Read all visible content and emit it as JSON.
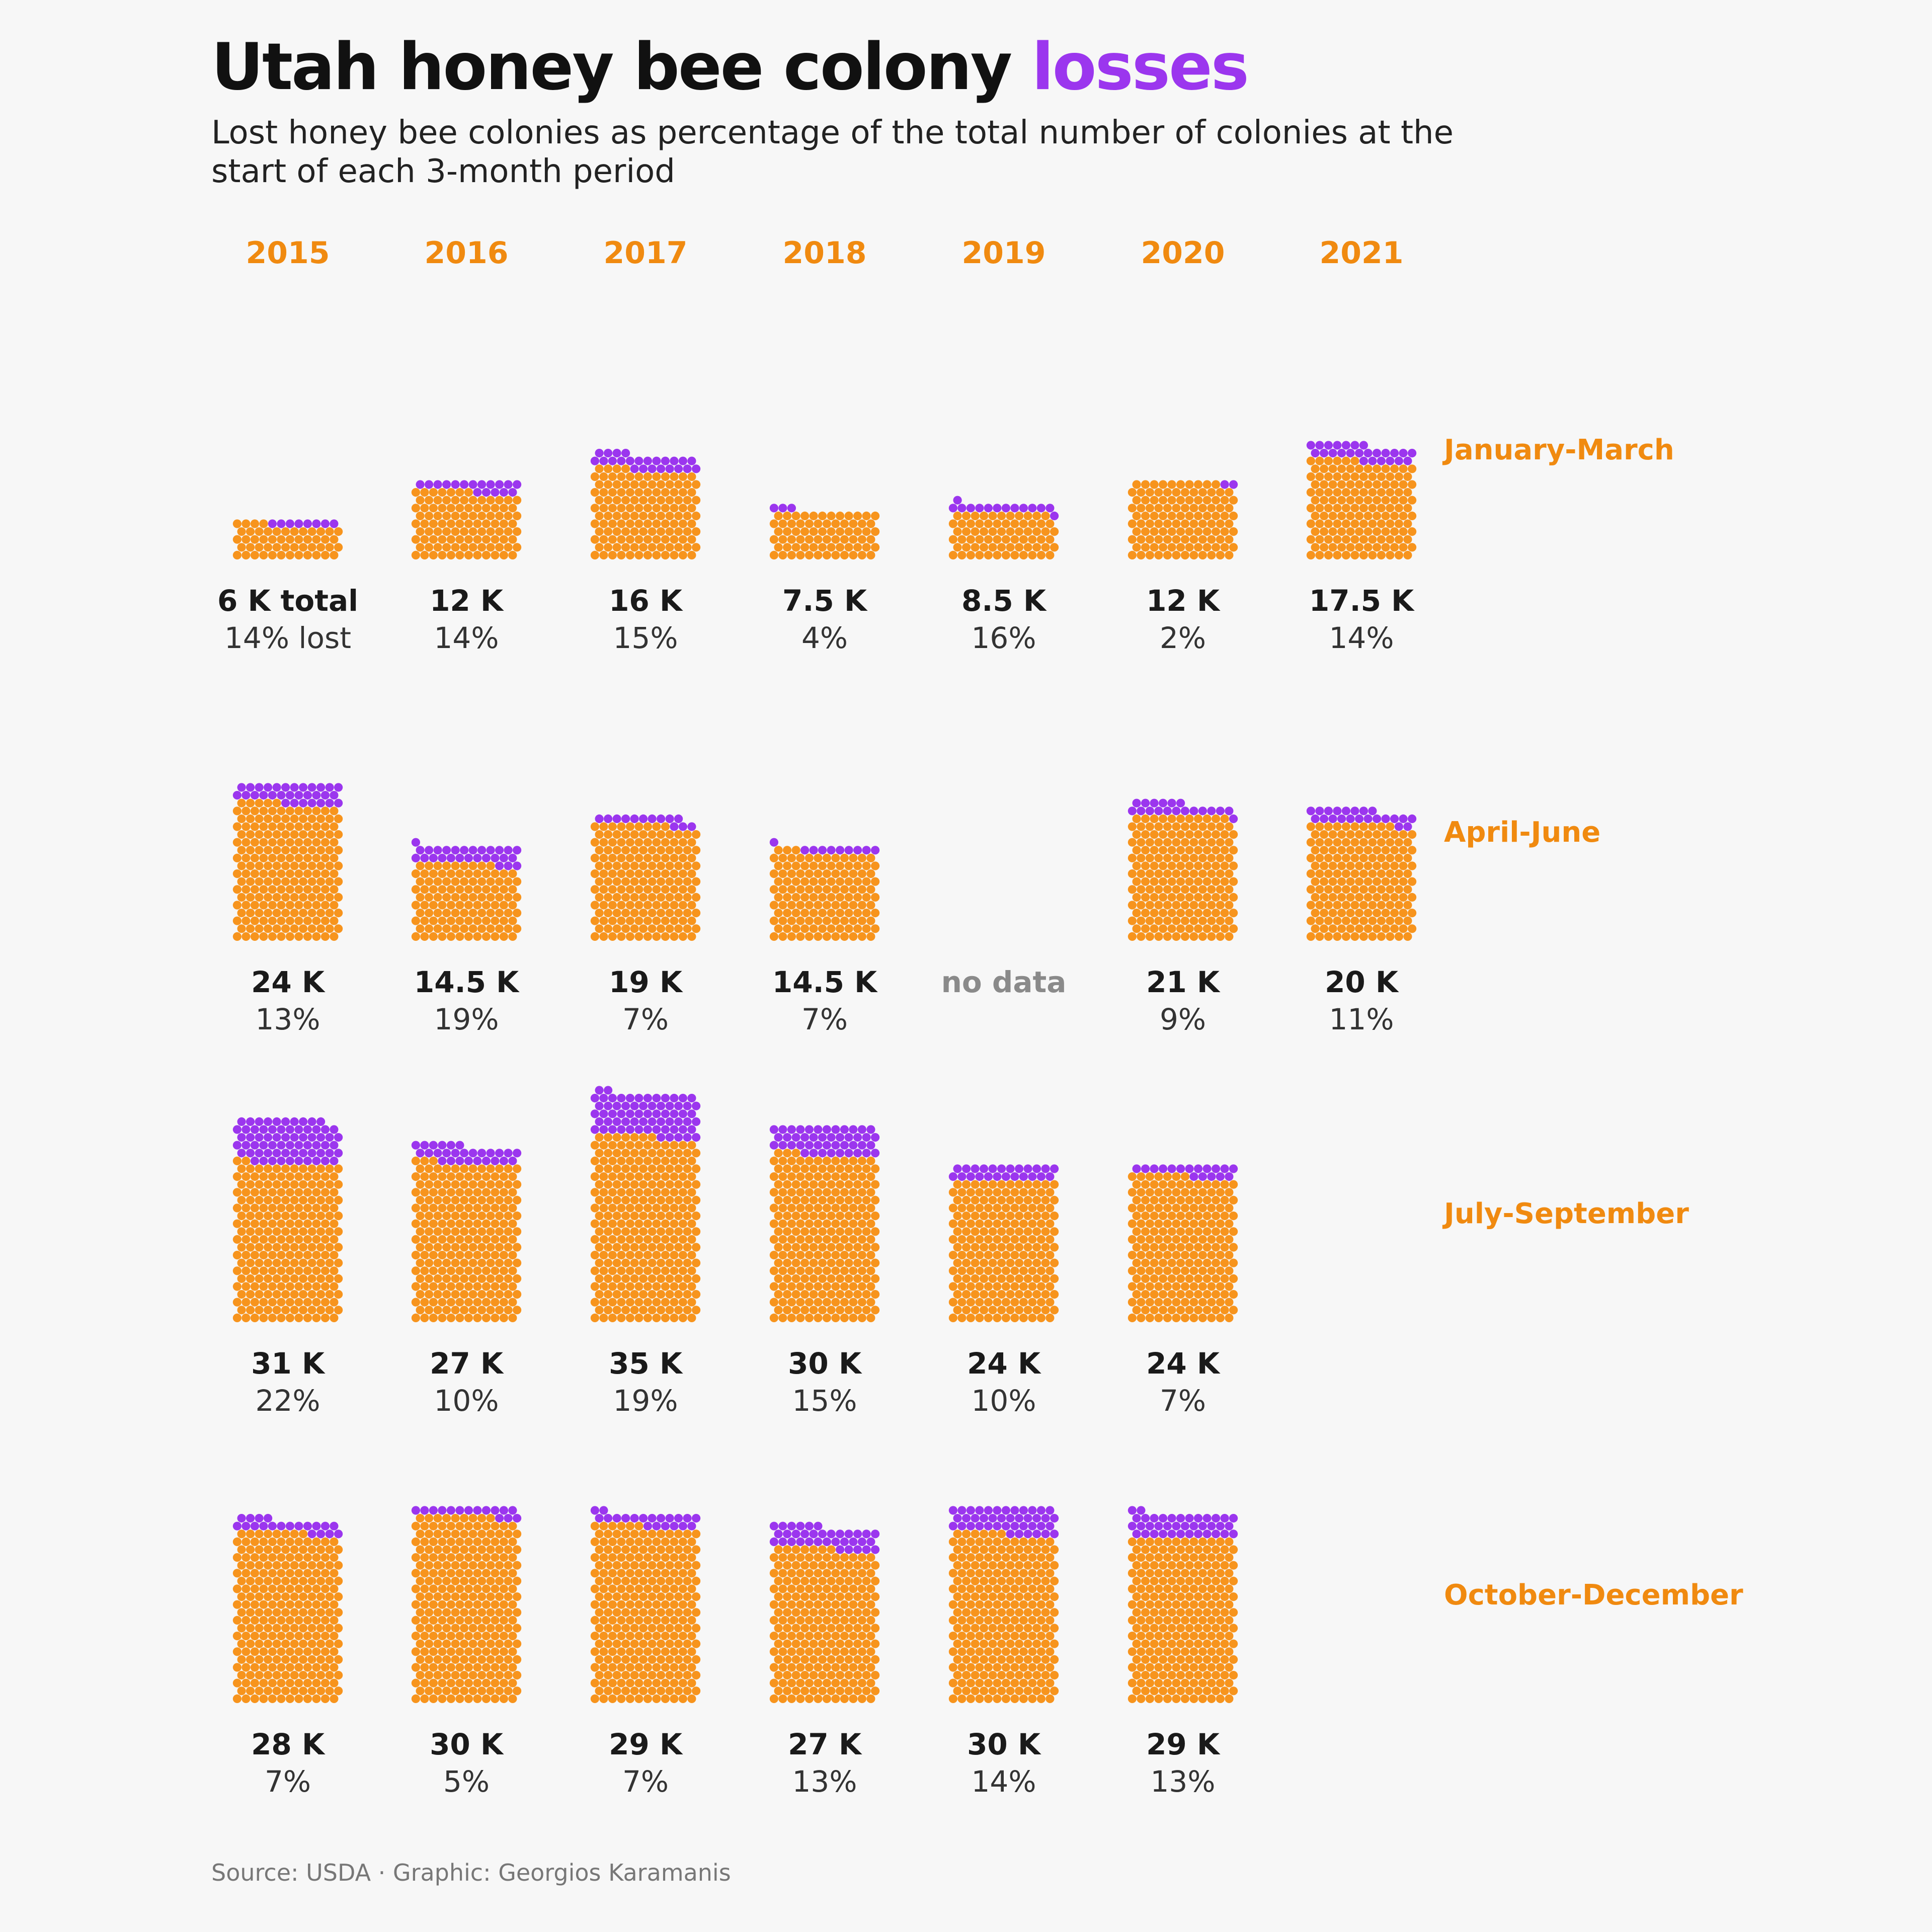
{
  "title": {
    "main": "Utah honey bee colony ",
    "accent": "losses"
  },
  "subtitle": "Lost honey bee colonies as percentage of the total number of colonies at the start of each 3-month period",
  "source": "Source: USDA · Graphic: Georgios Karamanis",
  "colors": {
    "remaining": "#f7941d",
    "lost": "#9b36ee",
    "label_accent": "#f08a10"
  },
  "chart_data": {
    "type": "waffle",
    "years": [
      "2015",
      "2016",
      "2017",
      "2018",
      "2019",
      "2020",
      "2021"
    ],
    "periods": [
      "January-March",
      "April-June",
      "July-September",
      "October-December"
    ],
    "cells": [
      [
        {
          "total": 6,
          "total_label": "6 K total",
          "lost_pct": 14,
          "pct_label": "14% lost"
        },
        {
          "total": 12,
          "total_label": "12 K",
          "lost_pct": 14,
          "pct_label": "14%"
        },
        {
          "total": 16,
          "total_label": "16 K",
          "lost_pct": 15,
          "pct_label": "15%"
        },
        {
          "total": 7.5,
          "total_label": "7.5 K",
          "lost_pct": 4,
          "pct_label": "4%"
        },
        {
          "total": 8.5,
          "total_label": "8.5 K",
          "lost_pct": 16,
          "pct_label": "16%"
        },
        {
          "total": 12,
          "total_label": "12 K",
          "lost_pct": 2,
          "pct_label": "2%"
        },
        {
          "total": 17.5,
          "total_label": "17.5 K",
          "lost_pct": 14,
          "pct_label": "14%"
        }
      ],
      [
        {
          "total": 24,
          "total_label": "24 K",
          "lost_pct": 13,
          "pct_label": "13%"
        },
        {
          "total": 14.5,
          "total_label": "14.5 K",
          "lost_pct": 19,
          "pct_label": "19%"
        },
        {
          "total": 19,
          "total_label": "19 K",
          "lost_pct": 7,
          "pct_label": "7%"
        },
        {
          "total": 14.5,
          "total_label": "14.5 K",
          "lost_pct": 7,
          "pct_label": "7%"
        },
        {
          "total": null,
          "total_label": "no data",
          "lost_pct": null,
          "pct_label": ""
        },
        {
          "total": 21,
          "total_label": "21 K",
          "lost_pct": 9,
          "pct_label": "9%"
        },
        {
          "total": 20,
          "total_label": "20 K",
          "lost_pct": 11,
          "pct_label": "11%"
        }
      ],
      [
        {
          "total": 31,
          "total_label": "31 K",
          "lost_pct": 22,
          "pct_label": "22%"
        },
        {
          "total": 27,
          "total_label": "27 K",
          "lost_pct": 10,
          "pct_label": "10%"
        },
        {
          "total": 35,
          "total_label": "35 K",
          "lost_pct": 19,
          "pct_label": "19%"
        },
        {
          "total": 30,
          "total_label": "30 K",
          "lost_pct": 15,
          "pct_label": "15%"
        },
        {
          "total": 24,
          "total_label": "24 K",
          "lost_pct": 10,
          "pct_label": "10%"
        },
        {
          "total": 24,
          "total_label": "24 K",
          "lost_pct": 7,
          "pct_label": "7%"
        },
        null
      ],
      [
        {
          "total": 28,
          "total_label": "28 K",
          "lost_pct": 7,
          "pct_label": "7%"
        },
        {
          "total": 30,
          "total_label": "30 K",
          "lost_pct": 5,
          "pct_label": "5%"
        },
        {
          "total": 29,
          "total_label": "29 K",
          "lost_pct": 7,
          "pct_label": "7%"
        },
        {
          "total": 27,
          "total_label": "27 K",
          "lost_pct": 13,
          "pct_label": "13%"
        },
        {
          "total": 30,
          "total_label": "30 K",
          "lost_pct": 14,
          "pct_label": "14%"
        },
        {
          "total": 29,
          "total_label": "29 K",
          "lost_pct": 13,
          "pct_label": "13%"
        },
        null
      ]
    ]
  }
}
